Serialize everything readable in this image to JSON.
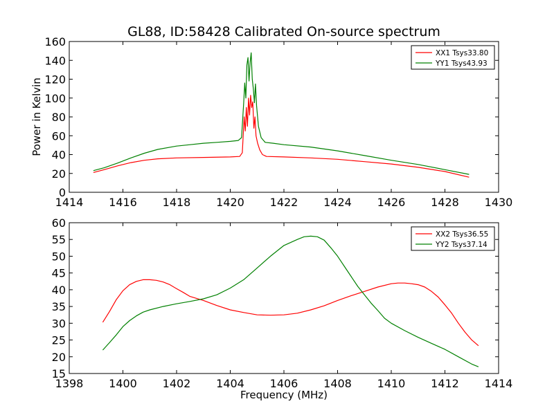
{
  "chart_data": [
    {
      "type": "line",
      "title": "GL88, ID:58428 Calibrated On-source spectrum",
      "xlabel": "",
      "ylabel": "Power in Kelvin",
      "xlim": [
        1414,
        1430
      ],
      "ylim": [
        0,
        160
      ],
      "xticks": [
        1414,
        1416,
        1418,
        1420,
        1422,
        1424,
        1426,
        1428,
        1430
      ],
      "yticks": [
        0,
        20,
        40,
        60,
        80,
        100,
        120,
        140,
        160
      ],
      "grid": false,
      "legend_position": "top-right",
      "series": [
        {
          "name": "XX1 Tsys33.80",
          "color": "#ff0000",
          "points": [
            [
              1414.9,
              21
            ],
            [
              1415.3,
              24
            ],
            [
              1415.8,
              28
            ],
            [
              1416.3,
              31.5
            ],
            [
              1416.8,
              34
            ],
            [
              1417.3,
              35.5
            ],
            [
              1418,
              36.5
            ],
            [
              1419,
              37
            ],
            [
              1420,
              37.5
            ],
            [
              1420.35,
              38
            ],
            [
              1420.45,
              42
            ],
            [
              1420.52,
              80
            ],
            [
              1420.56,
              65
            ],
            [
              1420.6,
              90
            ],
            [
              1420.64,
              70
            ],
            [
              1420.68,
              100
            ],
            [
              1420.72,
              82
            ],
            [
              1420.76,
              103
            ],
            [
              1420.8,
              90
            ],
            [
              1420.84,
              96
            ],
            [
              1420.88,
              68
            ],
            [
              1420.92,
              80
            ],
            [
              1420.96,
              60
            ],
            [
              1421.02,
              52
            ],
            [
              1421.1,
              45
            ],
            [
              1421.2,
              40
            ],
            [
              1421.35,
              38
            ],
            [
              1422,
              37.5
            ],
            [
              1423,
              36.5
            ],
            [
              1424,
              35
            ],
            [
              1425,
              32.5
            ],
            [
              1426,
              30
            ],
            [
              1427,
              26.5
            ],
            [
              1428,
              22
            ],
            [
              1428.9,
              16
            ]
          ]
        },
        {
          "name": "YY1 Tsys43.93",
          "color": "#008000",
          "points": [
            [
              1414.9,
              23
            ],
            [
              1415.3,
              26
            ],
            [
              1415.8,
              31
            ],
            [
              1416.3,
              36.5
            ],
            [
              1416.8,
              41.5
            ],
            [
              1417.3,
              45.5
            ],
            [
              1418,
              49
            ],
            [
              1418.5,
              50.5
            ],
            [
              1419,
              52
            ],
            [
              1419.5,
              53
            ],
            [
              1420,
              54
            ],
            [
              1420.3,
              55
            ],
            [
              1420.42,
              58
            ],
            [
              1420.5,
              95
            ],
            [
              1420.54,
              116
            ],
            [
              1420.58,
              100
            ],
            [
              1420.62,
              135
            ],
            [
              1420.66,
              143
            ],
            [
              1420.7,
              118
            ],
            [
              1420.74,
              138
            ],
            [
              1420.78,
              148
            ],
            [
              1420.82,
              120
            ],
            [
              1420.86,
              110
            ],
            [
              1420.9,
              95
            ],
            [
              1420.94,
              115
            ],
            [
              1420.98,
              92
            ],
            [
              1421.05,
              70
            ],
            [
              1421.15,
              58
            ],
            [
              1421.3,
              53
            ],
            [
              1421.6,
              52
            ],
            [
              1422,
              50.5
            ],
            [
              1423,
              48
            ],
            [
              1424,
              44
            ],
            [
              1425,
              39
            ],
            [
              1426,
              34
            ],
            [
              1427,
              29.5
            ],
            [
              1428,
              24
            ],
            [
              1428.9,
              19
            ]
          ]
        }
      ]
    },
    {
      "type": "line",
      "title": "",
      "xlabel": "Frequency (MHz)",
      "ylabel": "",
      "xlim": [
        1398,
        1414
      ],
      "ylim": [
        15,
        60
      ],
      "xticks": [
        1398,
        1400,
        1402,
        1404,
        1406,
        1408,
        1410,
        1412,
        1414
      ],
      "yticks": [
        15,
        20,
        25,
        30,
        35,
        40,
        45,
        50,
        55,
        60
      ],
      "grid": false,
      "legend_position": "top-right",
      "series": [
        {
          "name": "XX2 Tsys36.55",
          "color": "#ff0000",
          "points": [
            [
              1399.25,
              30.3
            ],
            [
              1399.5,
              33.5
            ],
            [
              1399.75,
              37
            ],
            [
              1400,
              39.7
            ],
            [
              1400.25,
              41.5
            ],
            [
              1400.5,
              42.5
            ],
            [
              1400.75,
              43
            ],
            [
              1401,
              43
            ],
            [
              1401.25,
              42.8
            ],
            [
              1401.5,
              42.3
            ],
            [
              1401.75,
              41.5
            ],
            [
              1402,
              40.3
            ],
            [
              1402.25,
              39.2
            ],
            [
              1402.5,
              38
            ],
            [
              1403,
              36.8
            ],
            [
              1403.5,
              35.3
            ],
            [
              1404,
              34
            ],
            [
              1404.5,
              33.2
            ],
            [
              1405,
              32.5
            ],
            [
              1405.5,
              32.4
            ],
            [
              1406,
              32.5
            ],
            [
              1406.5,
              33
            ],
            [
              1407,
              34
            ],
            [
              1407.5,
              35.2
            ],
            [
              1408,
              36.8
            ],
            [
              1408.5,
              38.2
            ],
            [
              1409,
              39.5
            ],
            [
              1409.5,
              40.8
            ],
            [
              1410,
              41.8
            ],
            [
              1410.25,
              42
            ],
            [
              1410.5,
              42
            ],
            [
              1410.75,
              41.8
            ],
            [
              1411,
              41.5
            ],
            [
              1411.25,
              40.8
            ],
            [
              1411.5,
              39.5
            ],
            [
              1411.75,
              37.8
            ],
            [
              1412,
              35.5
            ],
            [
              1412.25,
              33
            ],
            [
              1412.5,
              30
            ],
            [
              1412.75,
              27.3
            ],
            [
              1413,
              25
            ],
            [
              1413.25,
              23.3
            ]
          ]
        },
        {
          "name": "YY2 Tsys37.14",
          "color": "#008000",
          "points": [
            [
              1399.25,
              22
            ],
            [
              1399.5,
              24.2
            ],
            [
              1399.75,
              26.5
            ],
            [
              1400,
              29
            ],
            [
              1400.25,
              30.8
            ],
            [
              1400.5,
              32.2
            ],
            [
              1400.75,
              33.3
            ],
            [
              1401,
              34
            ],
            [
              1401.5,
              35
            ],
            [
              1402,
              35.8
            ],
            [
              1402.5,
              36.5
            ],
            [
              1403,
              37.3
            ],
            [
              1403.5,
              38.5
            ],
            [
              1404,
              40.5
            ],
            [
              1404.5,
              43
            ],
            [
              1405,
              46.5
            ],
            [
              1405.5,
              50
            ],
            [
              1406,
              53.2
            ],
            [
              1406.5,
              55
            ],
            [
              1406.75,
              55.8
            ],
            [
              1407,
              56
            ],
            [
              1407.25,
              55.8
            ],
            [
              1407.5,
              54.8
            ],
            [
              1407.75,
              52.5
            ],
            [
              1408,
              50
            ],
            [
              1408.25,
              47
            ],
            [
              1408.5,
              44
            ],
            [
              1408.75,
              41
            ],
            [
              1409,
              38.5
            ],
            [
              1409.25,
              36
            ],
            [
              1409.5,
              33.8
            ],
            [
              1409.75,
              31.5
            ],
            [
              1410,
              30
            ],
            [
              1410.5,
              27.8
            ],
            [
              1411,
              25.8
            ],
            [
              1411.5,
              24
            ],
            [
              1412,
              22.2
            ],
            [
              1412.5,
              20
            ],
            [
              1413,
              17.8
            ],
            [
              1413.25,
              17
            ]
          ]
        }
      ]
    }
  ]
}
